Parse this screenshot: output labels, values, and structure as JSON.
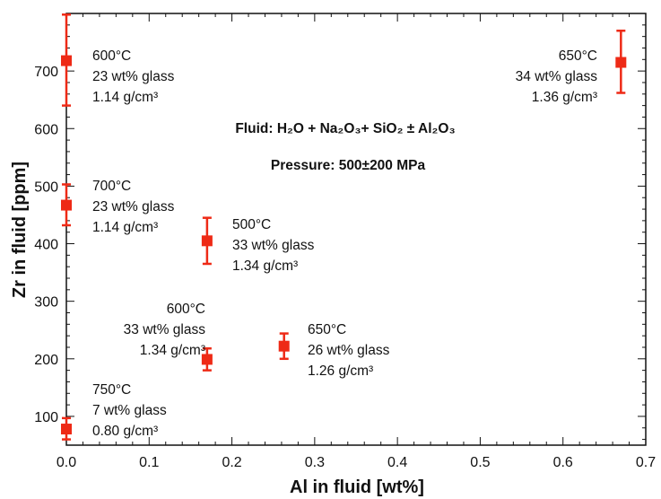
{
  "chart_data": {
    "type": "scatter",
    "xlabel": "Al in fluid [wt%]",
    "ylabel": "Zr in fluid [ppm]",
    "xlim": [
      0.0,
      0.7
    ],
    "ylim": [
      50,
      800
    ],
    "xticks": [
      "0.0",
      "0.1",
      "0.2",
      "0.3",
      "0.4",
      "0.5",
      "0.6",
      "0.7"
    ],
    "yticks": [
      "100",
      "200",
      "300",
      "400",
      "500",
      "600",
      "700"
    ],
    "grid": false,
    "marker_color": "#ee2a16",
    "title_lines": [
      "Fluid: H₂O + Na₂O₃+ SiO₂ ± Al₂O₃",
      "Pressure: 500±200 MPa"
    ],
    "points": [
      {
        "x": 0.0,
        "y": 718,
        "err_low": 640,
        "err_high": 798,
        "label": [
          "600°C",
          "23 wt% glass",
          "1.14 g/cm³"
        ]
      },
      {
        "x": 0.0,
        "y": 467,
        "err_low": 432,
        "err_high": 503,
        "label": [
          "700°C",
          "23 wt% glass",
          "1.14 g/cm³"
        ]
      },
      {
        "x": 0.0,
        "y": 78,
        "err_low": 60,
        "err_high": 97,
        "label": [
          "750°C",
          "7 wt% glass",
          "0.80 g/cm³"
        ]
      },
      {
        "x": 0.17,
        "y": 405,
        "err_low": 365,
        "err_high": 445,
        "label": [
          "500°C",
          "33 wt% glass",
          "1.34 g/cm³"
        ]
      },
      {
        "x": 0.17,
        "y": 199,
        "err_low": 180,
        "err_high": 218,
        "label": [
          "600°C",
          "33 wt% glass",
          "1.34 g/cm³"
        ]
      },
      {
        "x": 0.263,
        "y": 222,
        "err_low": 200,
        "err_high": 244,
        "label": [
          "650°C",
          "26 wt% glass",
          "1.26 g/cm³"
        ]
      },
      {
        "x": 0.67,
        "y": 715,
        "err_low": 662,
        "err_high": 770,
        "label": [
          "650°C",
          "34 wt% glass",
          "1.36 g/cm³"
        ]
      }
    ]
  }
}
